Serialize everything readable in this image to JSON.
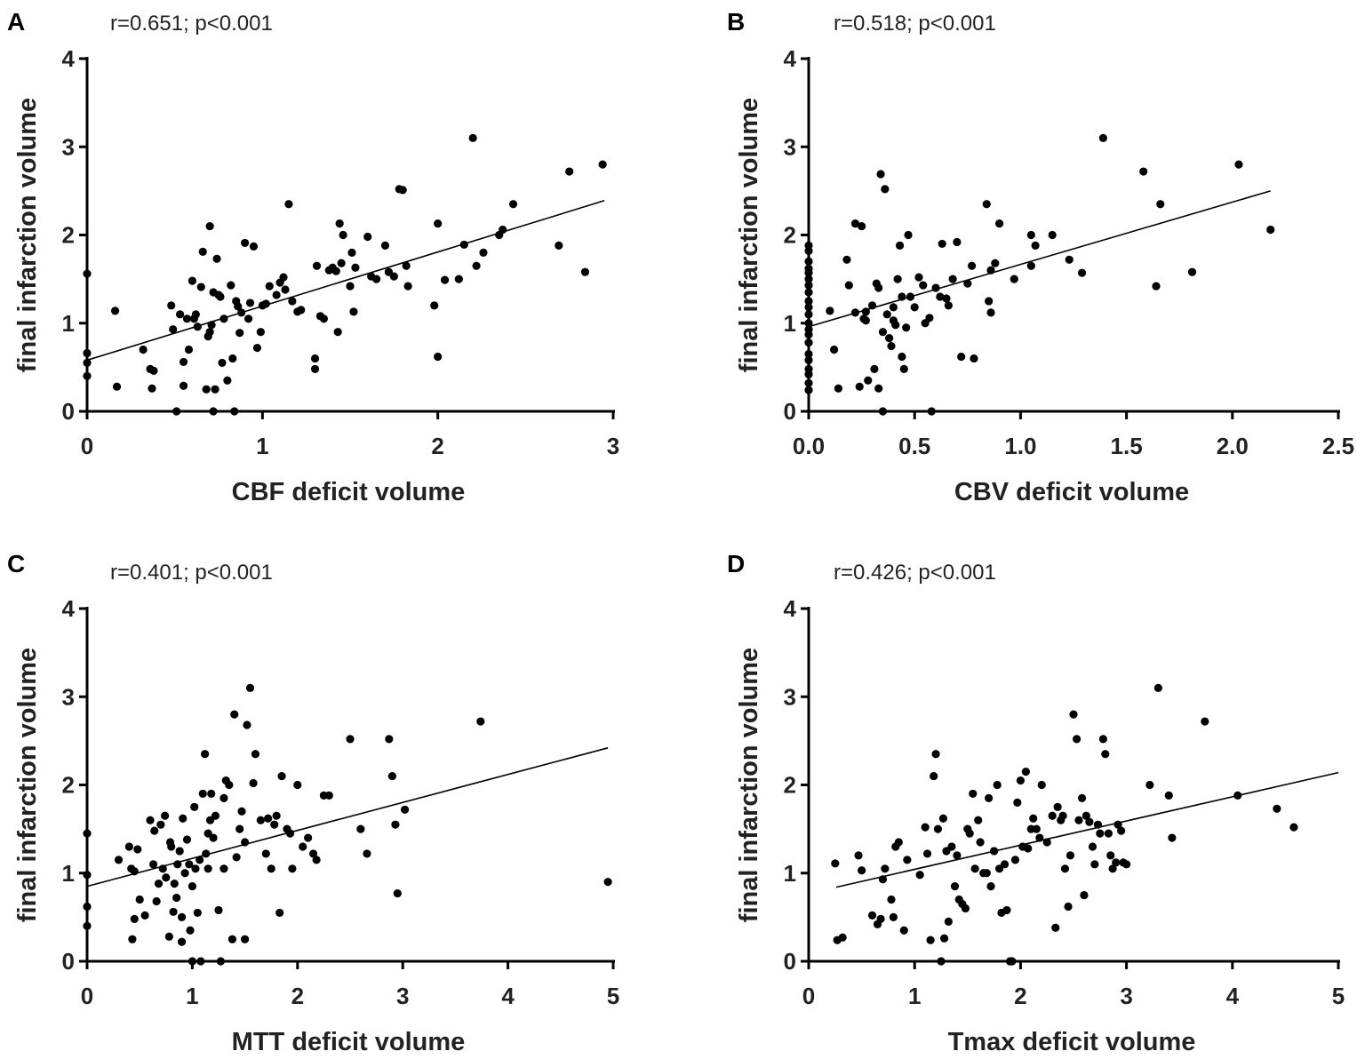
{
  "chart_data": [
    {
      "type": "scatter",
      "panel": "A",
      "annotation": "r=0.651; p<0.001",
      "xlabel": "CBF deficit volume",
      "ylabel": "final infarction volume",
      "xlim": [
        0,
        3
      ],
      "ylim": [
        0,
        4
      ],
      "xticks": [
        0,
        1,
        2,
        3
      ],
      "xtick_labels": [
        "0",
        "1",
        "2",
        "3"
      ],
      "yticks": [
        0,
        1,
        2,
        3,
        4
      ],
      "ytick_labels": [
        "0",
        "1",
        "2",
        "3",
        "4"
      ],
      "fit_line": [
        [
          0,
          0.58
        ],
        [
          2.95,
          2.39
        ]
      ],
      "x": [
        0,
        0,
        0,
        0,
        0.16,
        0.17,
        0.32,
        0.36,
        0.37,
        0.38,
        0.48,
        0.49,
        0.51,
        0.53,
        0.55,
        0.55,
        0.57,
        0.58,
        0.6,
        0.61,
        0.62,
        0.63,
        0.65,
        0.66,
        0.68,
        0.69,
        0.7,
        0.7,
        0.71,
        0.72,
        0.72,
        0.73,
        0.74,
        0.75,
        0.76,
        0.77,
        0.78,
        0.8,
        0.82,
        0.83,
        0.84,
        0.85,
        0.86,
        0.87,
        0.88,
        0.9,
        0.92,
        0.93,
        0.95,
        0.97,
        0.99,
        1.0,
        1.02,
        1.04,
        1.08,
        1.1,
        1.12,
        1.13,
        1.15,
        1.17,
        1.2,
        1.22,
        1.3,
        1.3,
        1.31,
        1.33,
        1.35,
        1.38,
        1.4,
        1.42,
        1.43,
        1.44,
        1.45,
        1.46,
        1.5,
        1.51,
        1.52,
        1.53,
        1.6,
        1.62,
        1.65,
        1.7,
        1.72,
        1.75,
        1.78,
        1.8,
        1.82,
        1.83,
        1.98,
        2.0,
        2.0,
        2.04,
        2.12,
        2.15,
        2.2,
        2.22,
        2.26,
        2.35,
        2.37,
        2.43,
        2.69,
        2.75,
        2.84,
        2.94
      ],
      "y": [
        1.56,
        0.66,
        0.4,
        0.55,
        1.14,
        0.28,
        0.7,
        0.48,
        0.26,
        0.46,
        1.2,
        0.93,
        0.0,
        1.1,
        0.56,
        0.29,
        1.05,
        0.7,
        1.48,
        1.05,
        1.1,
        0.96,
        1.41,
        1.81,
        0.25,
        0.85,
        0.9,
        2.1,
        0.98,
        1.35,
        0.0,
        0.25,
        1.73,
        1.32,
        1.3,
        0.55,
        1.05,
        0.35,
        1.43,
        0.6,
        0.0,
        1.25,
        1.19,
        0.89,
        1.12,
        1.91,
        1.05,
        1.23,
        1.87,
        0.72,
        0.9,
        1.2,
        1.22,
        1.42,
        1.32,
        1.46,
        1.52,
        1.38,
        2.35,
        1.25,
        1.13,
        1.15,
        0.6,
        0.48,
        1.65,
        1.08,
        1.05,
        1.6,
        1.63,
        1.59,
        0.9,
        2.13,
        1.68,
        2.0,
        1.42,
        1.8,
        1.13,
        1.63,
        1.98,
        1.53,
        1.5,
        1.88,
        1.58,
        1.53,
        2.52,
        2.51,
        1.65,
        1.42,
        1.2,
        2.13,
        0.62,
        1.49,
        1.5,
        1.89,
        3.1,
        1.65,
        1.8,
        2.0,
        2.06,
        2.35,
        1.88,
        2.72,
        1.58,
        2.8
      ]
    },
    {
      "type": "scatter",
      "panel": "B",
      "annotation": "r=0.518; p<0.001",
      "xlabel": "CBV deficit volume",
      "ylabel": "final infarction volume",
      "xlim": [
        0,
        2.5
      ],
      "ylim": [
        0,
        4
      ],
      "xticks": [
        0,
        0.5,
        1.0,
        1.5,
        2.0,
        2.5
      ],
      "xtick_labels": [
        "0.0",
        "0.5",
        "1.0",
        "1.5",
        "2.0",
        "2.5"
      ],
      "yticks": [
        0,
        1,
        2,
        3,
        4
      ],
      "ytick_labels": [
        "0",
        "1",
        "2",
        "3",
        "4"
      ],
      "fit_line": [
        [
          0,
          0.96
        ],
        [
          2.18,
          2.5
        ]
      ],
      "x": [
        0,
        0,
        0,
        0,
        0,
        0,
        0,
        0,
        0,
        0,
        0,
        0,
        0,
        0,
        0,
        0,
        0,
        0,
        0,
        0,
        0,
        0.1,
        0.12,
        0.14,
        0.18,
        0.19,
        0.22,
        0.22,
        0.24,
        0.25,
        0.26,
        0.27,
        0.27,
        0.28,
        0.3,
        0.31,
        0.32,
        0.33,
        0.33,
        0.34,
        0.35,
        0.35,
        0.36,
        0.37,
        0.38,
        0.39,
        0.4,
        0.4,
        0.41,
        0.42,
        0.43,
        0.44,
        0.44,
        0.45,
        0.46,
        0.47,
        0.48,
        0.5,
        0.52,
        0.54,
        0.55,
        0.57,
        0.58,
        0.6,
        0.62,
        0.63,
        0.65,
        0.66,
        0.68,
        0.7,
        0.72,
        0.75,
        0.77,
        0.78,
        0.84,
        0.85,
        0.86,
        0.86,
        0.88,
        0.9,
        0.97,
        1.05,
        1.05,
        1.07,
        1.15,
        1.23,
        1.29,
        1.39,
        1.58,
        1.64,
        1.66,
        1.81,
        2.03,
        2.18
      ],
      "y": [
        1.88,
        1.82,
        1.7,
        1.62,
        1.57,
        1.5,
        1.43,
        1.35,
        1.25,
        1.18,
        1.1,
        1.0,
        0.93,
        0.87,
        0.78,
        0.65,
        0.58,
        0.48,
        0.42,
        0.32,
        0.24,
        1.14,
        0.7,
        0.26,
        1.72,
        1.43,
        2.13,
        1.12,
        0.28,
        2.1,
        1.05,
        1.03,
        1.13,
        0.35,
        1.2,
        0.48,
        1.45,
        1.4,
        0.26,
        2.69,
        0.0,
        0.9,
        2.52,
        1.1,
        0.83,
        0.74,
        1.18,
        1.03,
        0.98,
        1.5,
        1.88,
        1.3,
        0.62,
        0.48,
        0.95,
        2.0,
        1.3,
        1.18,
        1.52,
        1.43,
        1.0,
        1.06,
        0.0,
        1.4,
        1.3,
        1.9,
        1.28,
        1.2,
        1.5,
        1.92,
        0.62,
        1.45,
        1.65,
        0.6,
        2.35,
        1.25,
        1.6,
        1.12,
        1.68,
        2.13,
        1.5,
        1.65,
        2.0,
        1.88,
        2.0,
        1.72,
        1.57,
        3.1,
        2.72,
        1.42,
        2.35,
        1.58,
        2.8,
        2.06
      ]
    },
    {
      "type": "scatter",
      "panel": "C",
      "annotation": "r=0.401; p<0.001",
      "xlabel": "MTT deficit volume",
      "ylabel": "final infarction volume",
      "xlim": [
        0,
        5
      ],
      "ylim": [
        0,
        4
      ],
      "xticks": [
        0,
        1,
        2,
        3,
        4,
        5
      ],
      "xtick_labels": [
        "0",
        "1",
        "2",
        "3",
        "4",
        "5"
      ],
      "yticks": [
        0,
        1,
        2,
        3,
        4
      ],
      "ytick_labels": [
        "0",
        "1",
        "2",
        "3",
        "4"
      ],
      "fit_line": [
        [
          0,
          0.85
        ],
        [
          4.95,
          2.42
        ]
      ],
      "x": [
        0,
        0,
        0,
        0,
        0.3,
        0.4,
        0.42,
        0.43,
        0.45,
        0.45,
        0.48,
        0.5,
        0.55,
        0.6,
        0.63,
        0.64,
        0.66,
        0.68,
        0.7,
        0.72,
        0.74,
        0.75,
        0.78,
        0.79,
        0.8,
        0.82,
        0.83,
        0.85,
        0.86,
        0.88,
        0.9,
        0.9,
        0.91,
        0.93,
        0.95,
        0.97,
        0.98,
        1.0,
        1.0,
        1.02,
        1.03,
        1.05,
        1.07,
        1.08,
        1.1,
        1.12,
        1.13,
        1.15,
        1.15,
        1.17,
        1.18,
        1.2,
        1.22,
        1.25,
        1.27,
        1.3,
        1.3,
        1.32,
        1.35,
        1.38,
        1.4,
        1.42,
        1.45,
        1.47,
        1.5,
        1.5,
        1.52,
        1.55,
        1.58,
        1.6,
        1.65,
        1.7,
        1.72,
        1.75,
        1.78,
        1.8,
        1.83,
        1.85,
        1.9,
        1.93,
        1.95,
        2.0,
        2.05,
        2.1,
        2.15,
        2.18,
        2.25,
        2.3,
        2.5,
        2.6,
        2.66,
        2.87,
        2.9,
        2.93,
        2.95,
        3.02,
        3.74,
        4.95
      ],
      "y": [
        1.45,
        0.98,
        0.62,
        0.4,
        1.15,
        1.3,
        1.05,
        0.25,
        0.48,
        1.02,
        1.27,
        0.7,
        0.52,
        1.6,
        1.1,
        1.48,
        0.68,
        0.88,
        1.55,
        1.05,
        1.65,
        0.95,
        0.28,
        1.35,
        1.3,
        0.56,
        0.88,
        0.72,
        1.1,
        1.25,
        0.22,
        0.5,
        1.62,
        1.0,
        1.38,
        1.1,
        0.35,
        0.85,
        0.0,
        1.75,
        1.05,
        0.55,
        1.15,
        0.0,
        1.9,
        2.35,
        1.22,
        1.45,
        1.05,
        1.6,
        1.9,
        1.4,
        1.65,
        0.58,
        0.0,
        1.05,
        1.85,
        2.05,
        2.0,
        0.25,
        2.8,
        1.18,
        1.5,
        1.7,
        0.25,
        1.35,
        2.68,
        3.1,
        2.02,
        2.35,
        1.6,
        1.22,
        1.62,
        1.05,
        1.55,
        1.65,
        0.55,
        2.1,
        1.5,
        1.45,
        1.05,
        2.0,
        1.3,
        1.4,
        1.22,
        1.15,
        1.88,
        1.88,
        2.52,
        1.5,
        1.22,
        2.52,
        2.1,
        1.55,
        0.77,
        1.72,
        2.72,
        0.9
      ]
    },
    {
      "type": "scatter",
      "panel": "D",
      "annotation": "r=0.426; p<0.001",
      "xlabel": "Tmax deficit volume",
      "ylabel": "final infarction volume",
      "xlim": [
        0,
        5
      ],
      "ylim": [
        0,
        4
      ],
      "xticks": [
        0,
        1,
        2,
        3,
        4,
        5
      ],
      "xtick_labels": [
        "0",
        "1",
        "2",
        "3",
        "4",
        "5"
      ],
      "yticks": [
        0,
        1,
        2,
        3,
        4
      ],
      "ytick_labels": [
        "0",
        "1",
        "2",
        "3",
        "4"
      ],
      "fit_line": [
        [
          0.26,
          0.84
        ],
        [
          5.0,
          2.14
        ]
      ],
      "x": [
        0.25,
        0.27,
        0.32,
        0.47,
        0.5,
        0.6,
        0.65,
        0.68,
        0.7,
        0.72,
        0.78,
        0.8,
        0.82,
        0.85,
        0.9,
        0.93,
        1.05,
        1.1,
        1.12,
        1.15,
        1.18,
        1.2,
        1.22,
        1.25,
        1.27,
        1.28,
        1.3,
        1.32,
        1.35,
        1.38,
        1.4,
        1.42,
        1.45,
        1.48,
        1.5,
        1.52,
        1.55,
        1.57,
        1.6,
        1.62,
        1.65,
        1.68,
        1.7,
        1.72,
        1.75,
        1.78,
        1.8,
        1.82,
        1.85,
        1.87,
        1.9,
        1.92,
        1.95,
        1.97,
        2.0,
        2.02,
        2.05,
        2.07,
        2.1,
        2.12,
        2.15,
        2.18,
        2.2,
        2.25,
        2.3,
        2.33,
        2.35,
        2.38,
        2.4,
        2.42,
        2.45,
        2.47,
        2.5,
        2.53,
        2.55,
        2.58,
        2.6,
        2.62,
        2.65,
        2.68,
        2.7,
        2.73,
        2.75,
        2.78,
        2.8,
        2.83,
        2.85,
        2.87,
        2.9,
        2.92,
        2.95,
        2.97,
        3.0,
        3.22,
        3.3,
        3.4,
        3.43,
        3.74,
        4.05,
        4.42,
        4.58
      ],
      "y": [
        1.11,
        0.24,
        0.27,
        1.2,
        1.03,
        0.52,
        0.42,
        0.48,
        0.93,
        1.05,
        0.7,
        0.5,
        1.3,
        1.35,
        0.35,
        1.15,
        0.98,
        1.52,
        1.22,
        0.24,
        2.1,
        2.35,
        1.5,
        0.0,
        1.62,
        0.26,
        1.25,
        0.45,
        1.3,
        0.85,
        1.2,
        0.7,
        0.65,
        0.6,
        1.5,
        1.45,
        1.9,
        1.05,
        1.6,
        1.35,
        1.0,
        1.0,
        1.85,
        0.85,
        1.25,
        2.0,
        1.05,
        0.55,
        1.1,
        0.58,
        0.0,
        0.0,
        1.15,
        1.8,
        2.05,
        1.3,
        2.15,
        1.28,
        1.5,
        1.62,
        1.5,
        1.4,
        2.0,
        1.35,
        1.65,
        0.38,
        1.75,
        1.6,
        1.65,
        1.05,
        0.62,
        1.2,
        2.8,
        2.52,
        1.6,
        1.85,
        0.75,
        1.65,
        1.58,
        1.3,
        1.1,
        1.55,
        1.45,
        2.52,
        2.35,
        1.45,
        1.2,
        1.05,
        1.12,
        1.55,
        1.48,
        1.12,
        1.1,
        2.0,
        3.1,
        1.88,
        1.4,
        2.72,
        1.88,
        1.73,
        1.52
      ]
    }
  ]
}
